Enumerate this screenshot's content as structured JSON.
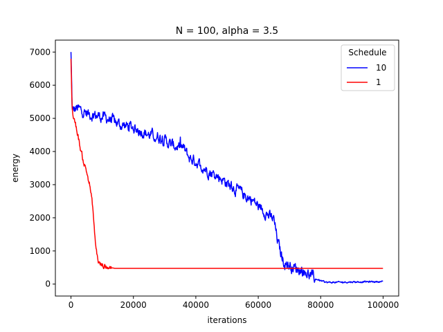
{
  "chart_data": {
    "type": "line",
    "title": "N = 100, alpha = 3.5",
    "xlabel": "iterations",
    "ylabel": "energy",
    "xlim": [
      -5000,
      105000
    ],
    "ylim": [
      -360,
      7360
    ],
    "xticks": [
      0,
      20000,
      40000,
      60000,
      80000,
      100000
    ],
    "xtick_labels": [
      "0",
      "20000",
      "40000",
      "60000",
      "80000",
      "100000"
    ],
    "yticks": [
      0,
      1000,
      2000,
      3000,
      4000,
      5000,
      6000,
      7000
    ],
    "ytick_labels": [
      "0",
      "1000",
      "2000",
      "3000",
      "4000",
      "5000",
      "6000",
      "7000"
    ],
    "grid": false,
    "legend": {
      "title": "Schedule",
      "placement": "top-right"
    },
    "series": [
      {
        "name": "10",
        "color": "#0000ff",
        "noise": 130,
        "x": [
          0,
          400,
          1000,
          2000,
          3000,
          5000,
          7000,
          10000,
          13000,
          16000,
          19000,
          22000,
          25000,
          28000,
          30000,
          32000,
          34000,
          36000,
          38000,
          40000,
          42000,
          45000,
          48000,
          50000,
          52000,
          54000,
          56000,
          58000,
          60000,
          62000,
          64000,
          65000,
          66000,
          67000,
          68000,
          70000,
          72000,
          74000,
          76000,
          78000,
          80000,
          82000,
          86000,
          90000,
          95000,
          100000
        ],
        "y": [
          6950,
          5200,
          5250,
          5300,
          5250,
          5150,
          5100,
          5050,
          4950,
          4800,
          4750,
          4650,
          4500,
          4450,
          4350,
          4200,
          4150,
          4100,
          3800,
          3700,
          3550,
          3350,
          3200,
          3050,
          2900,
          2800,
          2650,
          2550,
          2350,
          2200,
          2000,
          1950,
          1400,
          1000,
          700,
          550,
          480,
          420,
          300,
          180,
          100,
          50,
          55,
          65,
          70,
          75
        ]
      },
      {
        "name": "1",
        "color": "#ff0000",
        "noise": 70,
        "x": [
          0,
          300,
          600,
          1000,
          2000,
          3000,
          4000,
          5000,
          6000,
          7000,
          7500,
          8000,
          8500,
          9000,
          10000,
          11000,
          12000,
          13000,
          14000,
          20000,
          40000,
          60000,
          80000,
          100000
        ],
        "y": [
          6800,
          5500,
          5100,
          5000,
          4600,
          4100,
          3700,
          3400,
          3000,
          2300,
          1600,
          1100,
          800,
          620,
          560,
          540,
          520,
          500,
          475,
          475,
          475,
          475,
          475,
          475
        ]
      }
    ]
  }
}
